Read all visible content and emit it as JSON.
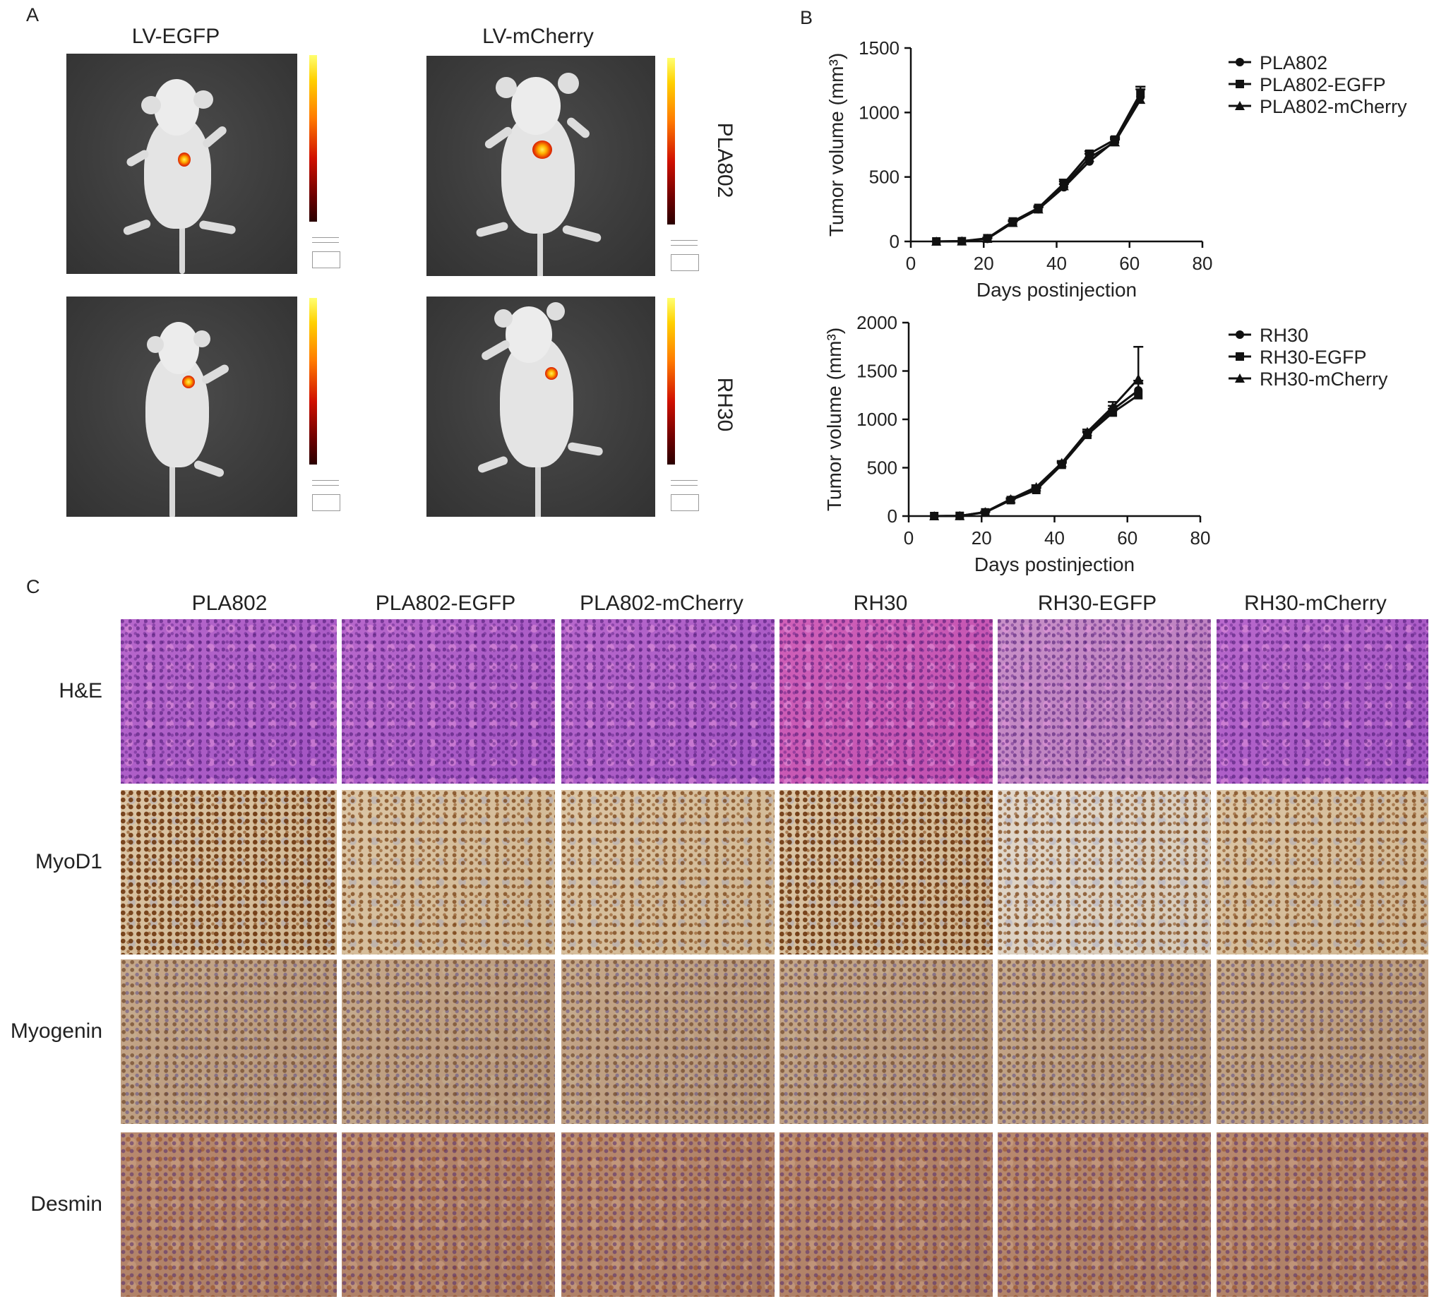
{
  "panel_a": {
    "letter": "A",
    "col_labels": [
      "LV-EGFP",
      "LV-mCherry"
    ],
    "row_labels": [
      "PLA802",
      "RH30"
    ]
  },
  "panel_b": {
    "letter": "B"
  },
  "panel_c": {
    "letter": "C",
    "col_labels": [
      "PLA802",
      "PLA802-EGFP",
      "PLA802-mCherry",
      "RH30",
      "RH30-EGFP",
      "RH30-mCherry"
    ],
    "row_labels": [
      "H&E",
      "MyoD1",
      "Myogenin",
      "Desmin"
    ]
  },
  "chart_data": [
    {
      "type": "line",
      "xlabel": "Days postinjection",
      "ylabel": "Tumor volume (mm³)",
      "xlim": [
        0,
        80
      ],
      "ylim": [
        0,
        1500
      ],
      "xticks": [
        0,
        20,
        40,
        60,
        80
      ],
      "yticks": [
        0,
        500,
        1000,
        1500
      ],
      "legend_position": "top-right",
      "x": [
        7,
        14,
        21,
        28,
        35,
        42,
        49,
        56,
        63
      ],
      "series": [
        {
          "name": "PLA802",
          "marker": "circle",
          "values": [
            0,
            2,
            20,
            150,
            250,
            420,
            620,
            780,
            1120
          ],
          "error": [
            0,
            0,
            5,
            10,
            15,
            25,
            30,
            20,
            60
          ]
        },
        {
          "name": "PLA802-EGFP",
          "marker": "square",
          "values": [
            0,
            2,
            25,
            155,
            260,
            450,
            680,
            790,
            1150
          ],
          "error": [
            0,
            0,
            5,
            10,
            15,
            30,
            20,
            20,
            50
          ]
        },
        {
          "name": "PLA802-mCherry",
          "marker": "triangle",
          "values": [
            0,
            2,
            22,
            145,
            250,
            430,
            650,
            770,
            1100
          ],
          "error": [
            0,
            0,
            5,
            10,
            15,
            35,
            30,
            20,
            100
          ]
        }
      ]
    },
    {
      "type": "line",
      "xlabel": "Days postinjection",
      "ylabel": "Tumor volume (mm³)",
      "xlim": [
        0,
        80
      ],
      "ylim": [
        0,
        2000
      ],
      "xticks": [
        0,
        20,
        40,
        60,
        80
      ],
      "yticks": [
        0,
        500,
        1000,
        1500,
        2000
      ],
      "legend_position": "top-right",
      "x": [
        7,
        14,
        21,
        28,
        35,
        42,
        49,
        56,
        63
      ],
      "series": [
        {
          "name": "RH30",
          "marker": "circle",
          "values": [
            0,
            2,
            40,
            170,
            280,
            540,
            850,
            1100,
            1300
          ],
          "error": [
            0,
            0,
            5,
            10,
            20,
            20,
            25,
            40,
            100
          ]
        },
        {
          "name": "RH30-EGFP",
          "marker": "square",
          "values": [
            0,
            2,
            38,
            165,
            270,
            530,
            840,
            1070,
            1250
          ],
          "error": [
            0,
            0,
            5,
            10,
            20,
            20,
            25,
            40,
            120
          ]
        },
        {
          "name": "RH30-mCherry",
          "marker": "triangle",
          "values": [
            0,
            2,
            42,
            175,
            300,
            550,
            870,
            1130,
            1420
          ],
          "error": [
            0,
            0,
            5,
            10,
            20,
            20,
            25,
            50,
            330
          ]
        }
      ]
    }
  ]
}
